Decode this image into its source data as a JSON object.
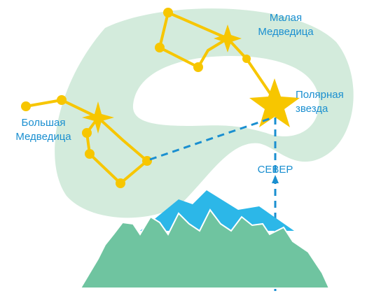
{
  "labels": {
    "little_dipper": [
      "Малая",
      "Медведица"
    ],
    "polaris": [
      "Полярная",
      "звезда"
    ],
    "big_dipper": [
      "Большая",
      "Медведица"
    ],
    "north": "СЕВЕР"
  }
}
